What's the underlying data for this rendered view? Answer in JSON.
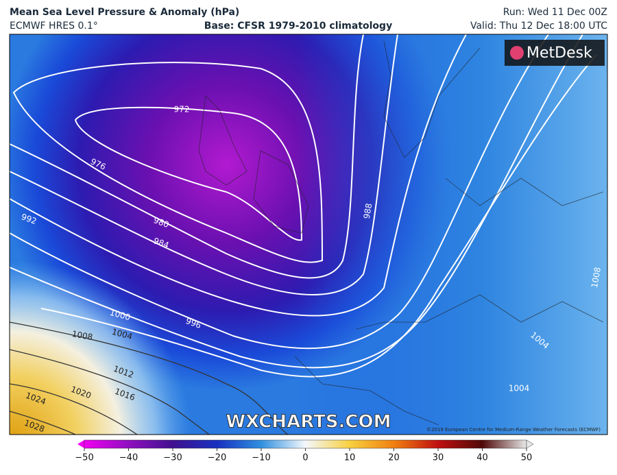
{
  "header": {
    "title": "Mean Sea Level Pressure & Anomaly (hPa)",
    "model": "ECMWF HRES 0.1°",
    "base": "Base: CFSR 1979-2010 climatology",
    "run": "Run: Wed 11 Dec 00Z",
    "valid": "Valid: Thu 12 Dec 18:00 UTC"
  },
  "map": {
    "logo": "MetDesk",
    "watermark": "WXCHARTS.COM",
    "copyright": "©2019 European Centre for Medium-Range Weather Forecasts (ECMWF)",
    "contour_labels": [
      972,
      976,
      980,
      984,
      988,
      992,
      996,
      1000,
      1004,
      1008,
      1012,
      1016,
      1020,
      1024,
      1028,
      1008,
      1004,
      1004
    ]
  },
  "colorbar": {
    "ticks": [
      {
        "value": -50,
        "label": "−50"
      },
      {
        "value": -40,
        "label": "−40"
      },
      {
        "value": -30,
        "label": "−30"
      },
      {
        "value": -20,
        "label": "−20"
      },
      {
        "value": -10,
        "label": "−10"
      },
      0,
      10,
      20,
      30,
      40,
      50
    ]
  }
}
